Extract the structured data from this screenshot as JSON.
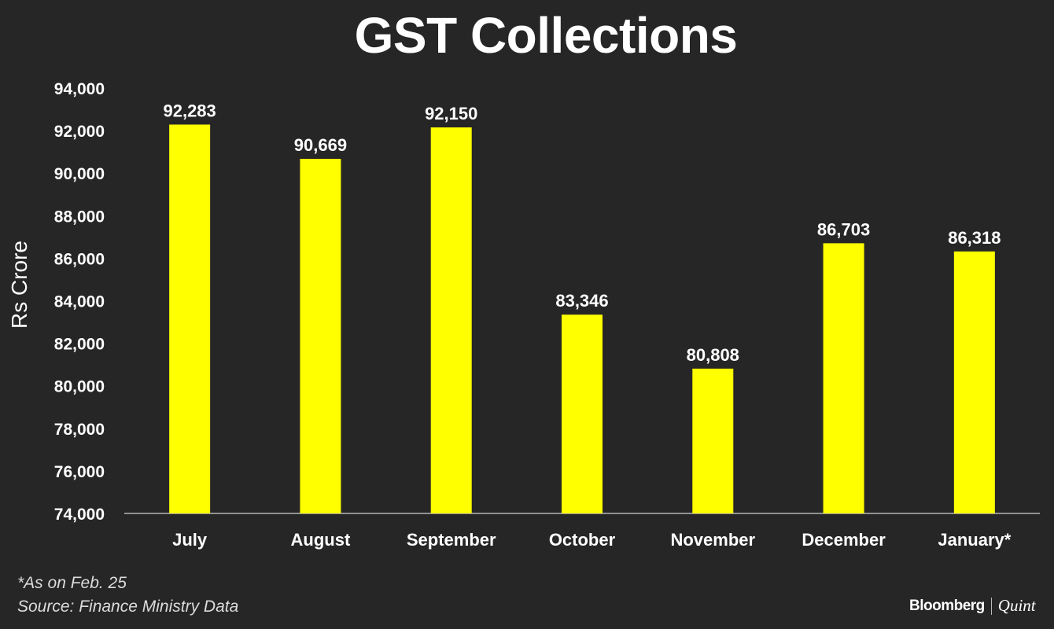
{
  "chart_data": {
    "type": "bar",
    "title": "GST Collections",
    "ylabel": "Rs Crore",
    "xlabel": "",
    "categories": [
      "July",
      "August",
      "September",
      "October",
      "November",
      "December",
      "January*"
    ],
    "values": [
      92283,
      90669,
      92150,
      83346,
      80808,
      86703,
      86318
    ],
    "value_labels": [
      "92,283",
      "90,669",
      "92,150",
      "83,346",
      "80,808",
      "86,703",
      "86,318"
    ],
    "ylim": [
      74000,
      94000
    ],
    "yticks": [
      74000,
      76000,
      78000,
      80000,
      82000,
      84000,
      86000,
      88000,
      90000,
      92000,
      94000
    ],
    "ytick_labels": [
      "74,000",
      "76,000",
      "78,000",
      "80,000",
      "82,000",
      "84,000",
      "86,000",
      "88,000",
      "90,000",
      "92,000",
      "94,000"
    ],
    "grid": false,
    "bar_color": "#ffff00"
  },
  "footnotes": {
    "note": "*As on Feb. 25",
    "source": "Source: Finance Ministry Data"
  },
  "brand": {
    "name": "Bloomberg",
    "suffix": "Quint"
  }
}
